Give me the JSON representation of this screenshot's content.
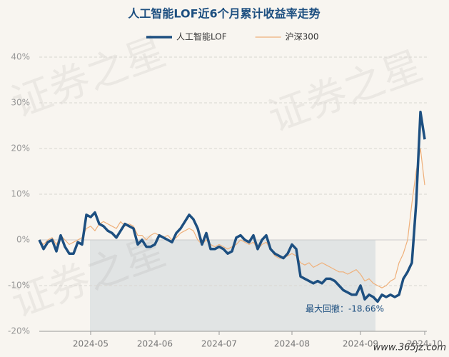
{
  "chart_data": {
    "type": "line",
    "title": "人工智能LOF近6个月累计收益率走势",
    "watermark": "证券之星",
    "source": "www.365jz.com",
    "annotation": "最大回撤：-18.66%",
    "categories": [
      null,
      null,
      null,
      null,
      null,
      null,
      null,
      null,
      null,
      null,
      null,
      null,
      "2024-05",
      null,
      null,
      null,
      null,
      null,
      null,
      null,
      null,
      null,
      null,
      null,
      null,
      null,
      null,
      "2024-06",
      null,
      null,
      null,
      null,
      null,
      null,
      null,
      null,
      null,
      null,
      null,
      null,
      null,
      null,
      "2024-07",
      null,
      null,
      null,
      null,
      null,
      null,
      null,
      null,
      null,
      null,
      null,
      null,
      null,
      null,
      null,
      null,
      "2024-08",
      null,
      null,
      null,
      null,
      null,
      null,
      null,
      null,
      null,
      null,
      null,
      null,
      null,
      null,
      null,
      "2024-09",
      null,
      null,
      null,
      null,
      null,
      null,
      null,
      null,
      null,
      null,
      null,
      null,
      null,
      null,
      "2024-10"
    ],
    "series": [
      {
        "name": "人工智能LOF",
        "color": "#1d4f80",
        "width": 3.5,
        "values": [
          0,
          -2,
          -0.5,
          0,
          -2.5,
          1,
          -1.5,
          -3,
          -3,
          -0.5,
          -1,
          5.5,
          5,
          6,
          3.5,
          3,
          2,
          1.5,
          0.5,
          2,
          3.5,
          3,
          2.5,
          -1,
          0,
          -1.5,
          -1.5,
          -1,
          1,
          0.5,
          0,
          -0.5,
          1.5,
          2.5,
          4,
          5.5,
          4.5,
          2.5,
          -1,
          1.5,
          -2,
          -2,
          -1.5,
          -2,
          -3,
          -2.5,
          0.5,
          1,
          0,
          -0.5,
          1,
          -2,
          0,
          1,
          -2,
          -3,
          -3.5,
          -4,
          -3,
          -1,
          -2,
          -8,
          -8.5,
          -9,
          -9.5,
          -9,
          -9.5,
          -8.5,
          -8.5,
          -9,
          -10,
          -11,
          -11.5,
          -12,
          -12,
          -10,
          -13,
          -12,
          -12.5,
          -13.5,
          -12,
          -12.5,
          -12,
          -12.5,
          -12,
          -8.5,
          -7,
          -5,
          8,
          28,
          22
        ]
      },
      {
        "name": "沪深300",
        "color": "#efb07a",
        "width": 1.2,
        "values": [
          0,
          -1,
          0,
          0.5,
          -1,
          1,
          0,
          -1,
          -0.5,
          0,
          0.5,
          2.5,
          3,
          2,
          3.5,
          4,
          3.5,
          3,
          2.5,
          4,
          3,
          3.5,
          3,
          1,
          1,
          0,
          1,
          1.5,
          1,
          0.5,
          1,
          0,
          0.5,
          1.5,
          2,
          2.5,
          2,
          0,
          -1,
          0,
          -1,
          -1.5,
          -1,
          -1.5,
          -2,
          -1.5,
          -1,
          0,
          -0.5,
          -1,
          -0.5,
          -2,
          -1,
          -0.5,
          -2,
          -3.5,
          -4,
          -4,
          -3.5,
          -3,
          -3.5,
          -5,
          -5.5,
          -5,
          -6,
          -5.5,
          -5,
          -5.5,
          -6,
          -6.5,
          -7,
          -7,
          -7.5,
          -7,
          -6.5,
          -7.5,
          -9,
          -8.5,
          -9.5,
          -10,
          -10.5,
          -10,
          -9,
          -8.5,
          -5,
          -3,
          0,
          8,
          15,
          20,
          12
        ]
      }
    ],
    "ylim": [
      -20,
      40
    ],
    "yticks": [
      {
        "value": -20,
        "label": "-20%"
      },
      {
        "value": -10,
        "label": "-10%"
      },
      {
        "value": 0,
        "label": "0%"
      },
      {
        "value": 10,
        "label": "10%"
      },
      {
        "value": 20,
        "label": "20%"
      },
      {
        "value": 30,
        "label": "30%"
      },
      {
        "value": 40,
        "label": "40%"
      }
    ],
    "grid": true
  }
}
